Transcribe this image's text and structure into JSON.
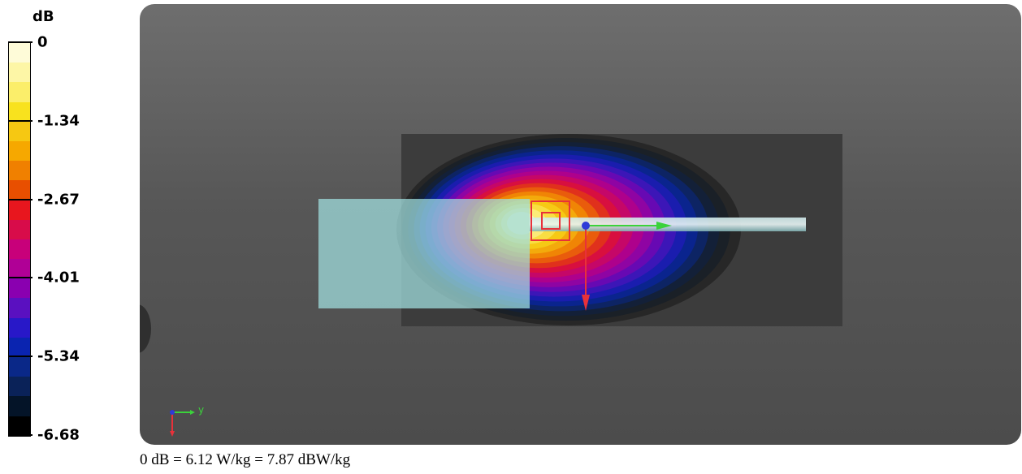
{
  "legend": {
    "unit": "dB",
    "ticks": [
      {
        "label": "0",
        "pos": 0.0
      },
      {
        "label": "-1.34",
        "pos": 0.2
      },
      {
        "label": "-2.67",
        "pos": 0.4
      },
      {
        "label": "-4.01",
        "pos": 0.6
      },
      {
        "label": "-5.34",
        "pos": 0.8
      },
      {
        "label": "-6.68",
        "pos": 1.0
      }
    ],
    "colors": [
      "#fefbd8",
      "#fdf6a6",
      "#fbee6a",
      "#f8e21e",
      "#f6c812",
      "#f6a800",
      "#f08000",
      "#e84f00",
      "#e8161e",
      "#d80c4a",
      "#c8007a",
      "#b00096",
      "#8a00b0",
      "#5a10c0",
      "#2818c8",
      "#0a24b0",
      "#0a2888",
      "#0a2258",
      "#041428",
      "#000000"
    ]
  },
  "viewport": {
    "axis_label_y": "y"
  },
  "footer": {
    "text": "0 dB = 6.12 W/kg = 7.87 dBW/kg"
  }
}
